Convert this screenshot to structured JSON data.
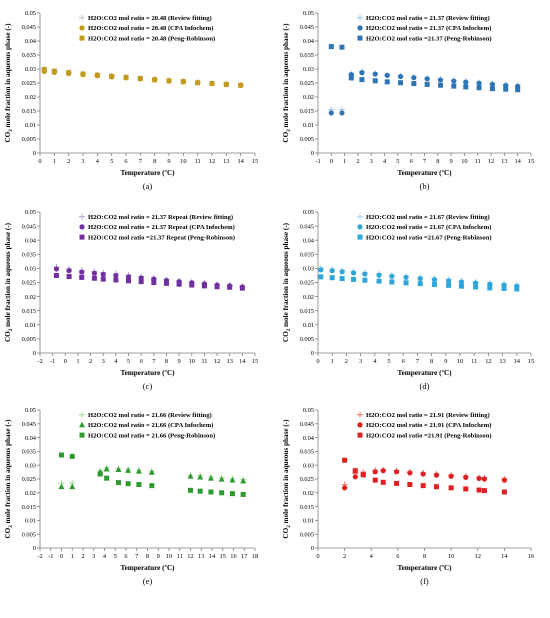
{
  "chart_data": [
    {
      "type": "scatter",
      "panel_label": "(a)",
      "xlabel": "Temperature (ºC)",
      "ylabel": "CO2 mole fraction in aqueous phase (-)",
      "xlim": [
        0,
        15
      ],
      "ylim": [
        0,
        0.05
      ],
      "xticks": [
        "0",
        "1",
        "2",
        "3",
        "4",
        "5",
        "6",
        "7",
        "8",
        "9",
        "10",
        "11",
        "12",
        "13",
        "14",
        "15"
      ],
      "yticks": [
        "0",
        "0.005",
        "0.01",
        "0.015",
        "0.02",
        "0.025",
        "0.03",
        "0.035",
        "0.04",
        "0.045",
        "0.05"
      ],
      "legend_position": "top-right",
      "grid": false,
      "series": [
        {
          "name": "H2O:CO2 mol ratio = 20.48 (Review fitting)",
          "marker": "plus",
          "color": "#c8c8c8",
          "x": [
            0.3,
            1,
            2,
            3,
            4,
            5,
            6,
            7,
            8,
            9,
            10,
            11,
            12,
            13,
            14
          ],
          "y": [
            0.03,
            0.0293,
            0.0288,
            0.0284,
            0.028,
            0.0276,
            0.0272,
            0.0268,
            0.0264,
            0.026,
            0.0257,
            0.0253,
            0.025,
            0.0247,
            0.0244
          ]
        },
        {
          "name": "H2O:CO2 mol ratio = 20.48 (CPA Infochem)",
          "marker": "circle",
          "color": "#c49a1c",
          "x": [
            0.3,
            1,
            2,
            3,
            4,
            5,
            6,
            7,
            8,
            9,
            10,
            11,
            12,
            13,
            14
          ],
          "y": [
            0.0291,
            0.0288,
            0.0284,
            0.028,
            0.0276,
            0.0272,
            0.0268,
            0.0265,
            0.0261,
            0.0257,
            0.0254,
            0.0251,
            0.0248,
            0.0245,
            0.0242
          ]
        },
        {
          "name": "H2O:CO2 mol ratio = 20.48 (Peng-Robinson)",
          "marker": "square",
          "color": "#c49a1c",
          "x": [
            0.3,
            1,
            2,
            3,
            4,
            5,
            6,
            7,
            8,
            9,
            10,
            11,
            12,
            13,
            14
          ],
          "y": [
            0.0298,
            0.0292,
            0.0287,
            0.0282,
            0.0278,
            0.0274,
            0.027,
            0.0266,
            0.0262,
            0.0258,
            0.0255,
            0.0251,
            0.0248,
            0.0245,
            0.0242
          ]
        }
      ]
    },
    {
      "type": "scatter",
      "panel_label": "(b)",
      "xlabel": "Temperature (ºC)",
      "ylabel": "CO2 mole fraction in aqueous phase (-)",
      "xlim": [
        -1,
        15
      ],
      "ylim": [
        0,
        0.05
      ],
      "xticks": [
        "-1",
        "0",
        "1",
        "2",
        "3",
        "4",
        "5",
        "6",
        "7",
        "8",
        "9",
        "10",
        "11",
        "12",
        "13",
        "14",
        "15"
      ],
      "yticks": [
        "0",
        "0.005",
        "0.01",
        "0.015",
        "0.02",
        "0.025",
        "0.03",
        "0.035",
        "0.04",
        "0.045",
        "0.05"
      ],
      "legend_position": "top-right",
      "grid": false,
      "series": [
        {
          "name": "H2O:CO2 mol ratio = 21.37 (Review fitting)",
          "marker": "plus",
          "color": "#a8c8e8",
          "x": [
            0,
            0.8,
            1.5,
            2.3,
            3.3,
            4.2,
            5.2,
            6.2,
            7.2,
            8.2,
            9.2,
            10.1,
            11.1,
            12.1,
            13.1,
            14
          ],
          "y": [
            0.0155,
            0.0155,
            0.0283,
            0.0291,
            0.0284,
            0.028,
            0.0276,
            0.0272,
            0.0268,
            0.0264,
            0.026,
            0.0256,
            0.0252,
            0.0248,
            0.0245,
            0.0242
          ]
        },
        {
          "name": "H2O:CO2 mol ratio = 21.37 (CPA Infochem)",
          "marker": "circle",
          "color": "#2e75b6",
          "x": [
            0,
            0.8,
            1.5,
            2.3,
            3.3,
            4.2,
            5.2,
            6.2,
            7.2,
            8.2,
            9.2,
            10.1,
            11.1,
            12.1,
            13.1,
            14
          ],
          "y": [
            0.0143,
            0.0143,
            0.028,
            0.0287,
            0.0282,
            0.0277,
            0.0273,
            0.0269,
            0.0265,
            0.0261,
            0.0257,
            0.0253,
            0.0249,
            0.0245,
            0.0241,
            0.0238
          ]
        },
        {
          "name": "H2O:CO2 mol ratio =21.37 (Peng-Robinson)",
          "marker": "square",
          "color": "#2e75b6",
          "x": [
            0,
            0.8,
            1.5,
            2.3,
            3.3,
            4.2,
            5.2,
            6.2,
            7.2,
            8.2,
            9.2,
            10.1,
            11.1,
            12.1,
            13.1,
            14
          ],
          "y": [
            0.038,
            0.0378,
            0.0268,
            0.0262,
            0.0258,
            0.0254,
            0.0251,
            0.0248,
            0.0245,
            0.0242,
            0.0239,
            0.0236,
            0.0233,
            0.023,
            0.0228,
            0.0226
          ]
        }
      ]
    },
    {
      "type": "scatter",
      "panel_label": "(c)",
      "xlabel": "Temperature (ºC)",
      "ylabel": "CO2 mole fraction in aqueous phase (-)",
      "xlim": [
        -2,
        15
      ],
      "ylim": [
        0,
        0.05
      ],
      "xticks": [
        "-2",
        "-1",
        "0",
        "1",
        "2",
        "3",
        "4",
        "5",
        "6",
        "7",
        "8",
        "9",
        "10",
        "11",
        "12",
        "13",
        "14",
        "15"
      ],
      "yticks": [
        "0",
        "0.005",
        "0.01",
        "0.015",
        "0.02",
        "0.025",
        "0.03",
        "0.035",
        "0.04",
        "0.045",
        "0.05"
      ],
      "legend_position": "top-right",
      "grid": false,
      "series": [
        {
          "name": "H2O:CO2 mol ratio = 21.37 Repeat (Review fitting)",
          "marker": "plus",
          "color": "#c0a8d8",
          "x": [
            -0.7,
            0.3,
            1.3,
            2.3,
            3,
            4,
            5,
            6,
            7,
            8,
            9,
            10,
            11,
            12,
            13,
            14
          ],
          "y": [
            0.0305,
            0.0298,
            0.0293,
            0.0289,
            0.0285,
            0.0281,
            0.0276,
            0.0271,
            0.0266,
            0.0261,
            0.0256,
            0.0252,
            0.0248,
            0.0244,
            0.024,
            0.0236
          ]
        },
        {
          "name": "H2O:CO2 mol ratio = 21.37 Repeat (CPA Infochem)",
          "marker": "circle",
          "color": "#7030a0",
          "x": [
            -0.7,
            0.3,
            1.3,
            2.3,
            3,
            4,
            5,
            6,
            7,
            8,
            9,
            10,
            11,
            12,
            13,
            14
          ],
          "y": [
            0.0298,
            0.0292,
            0.0287,
            0.0283,
            0.0279,
            0.0275,
            0.027,
            0.0266,
            0.0262,
            0.0257,
            0.0253,
            0.0249,
            0.0245,
            0.0241,
            0.0238,
            0.0234
          ]
        },
        {
          "name": "H2O:CO2 mol ratio =21.37 Repeat (Peng-Robinson)",
          "marker": "square",
          "color": "#7030a0",
          "x": [
            -0.7,
            0.3,
            1.3,
            2.3,
            3,
            4,
            5,
            6,
            7,
            8,
            9,
            10,
            11,
            12,
            13,
            14
          ],
          "y": [
            0.0275,
            0.0271,
            0.0268,
            0.0265,
            0.0262,
            0.0259,
            0.0256,
            0.0253,
            0.025,
            0.0247,
            0.0244,
            0.0241,
            0.0238,
            0.0235,
            0.0233,
            0.023
          ]
        }
      ]
    },
    {
      "type": "scatter",
      "panel_label": "(d)",
      "xlabel": "Temperature (ºC)",
      "ylabel": "CO2 mole fraction in aqueous phase (-)",
      "xlim": [
        0,
        15
      ],
      "ylim": [
        0,
        0.05
      ],
      "xticks": [
        "0",
        "1",
        "2",
        "3",
        "4",
        "5",
        "6",
        "7",
        "8",
        "9",
        "10",
        "11",
        "12",
        "13",
        "14",
        "15"
      ],
      "yticks": [
        "0",
        "0.005",
        "0.01",
        "0.015",
        "0.02",
        "0.025",
        "0.03",
        "0.035",
        "0.04",
        "0.045",
        "0.05"
      ],
      "legend_position": "top-right",
      "grid": false,
      "series": [
        {
          "name": "H2O:CO2 mol ratio = 21.67 (Review fitting)",
          "marker": "plus",
          "color": "#a8d8f0",
          "x": [
            0.2,
            1,
            1.7,
            2.5,
            3.3,
            4.3,
            5.2,
            6.2,
            7.2,
            8.2,
            9.2,
            10.1,
            11.1,
            12.1,
            13.1,
            14
          ],
          "y": [
            0.0302,
            0.0297,
            0.0293,
            0.0289,
            0.0285,
            0.0281,
            0.0277,
            0.0273,
            0.0269,
            0.0265,
            0.0261,
            0.0257,
            0.0253,
            0.0249,
            0.0245,
            0.0241
          ]
        },
        {
          "name": "H2O:CO2 mol ratio = 21.67 (CPA Infochem)",
          "marker": "circle",
          "color": "#2ea6db",
          "x": [
            0.2,
            1,
            1.7,
            2.5,
            3.3,
            4.3,
            5.2,
            6.2,
            7.2,
            8.2,
            9.2,
            10.1,
            11.1,
            12.1,
            13.1,
            14
          ],
          "y": [
            0.0295,
            0.0292,
            0.0288,
            0.0284,
            0.028,
            0.0276,
            0.0272,
            0.0268,
            0.0264,
            0.026,
            0.0256,
            0.0252,
            0.0248,
            0.0244,
            0.0241,
            0.0237
          ]
        },
        {
          "name": "H2O:CO2 mol ratio =21.67 (Peng-Robinson)",
          "marker": "square",
          "color": "#2ea6db",
          "x": [
            0.2,
            1,
            1.7,
            2.5,
            3.3,
            4.3,
            5.2,
            6.2,
            7.2,
            8.2,
            9.2,
            10.1,
            11.1,
            12.1,
            13.1,
            14
          ],
          "y": [
            0.027,
            0.0267,
            0.0264,
            0.0261,
            0.0258,
            0.0255,
            0.0252,
            0.0249,
            0.0246,
            0.0243,
            0.024,
            0.0237,
            0.0234,
            0.0231,
            0.0229,
            0.0227
          ]
        }
      ]
    },
    {
      "type": "scatter",
      "panel_label": "(e)",
      "xlabel": "Temperature (ºC)",
      "ylabel": "CO2 mole fraction in aqueous phase (-)",
      "xlim": [
        -2,
        18
      ],
      "ylim": [
        0,
        0.05
      ],
      "xticks": [
        "-2",
        "-1",
        "0",
        "1",
        "2",
        "3",
        "4",
        "5",
        "6",
        "7",
        "8",
        "9",
        "10",
        "11",
        "12",
        "13",
        "14",
        "15",
        "16",
        "17",
        "18"
      ],
      "yticks": [
        "0",
        "0.005",
        "0.01",
        "0.015",
        "0.02",
        "0.025",
        "0.03",
        "0.035",
        "0.04",
        "0.045",
        "0.05"
      ],
      "legend_position": "top-right",
      "grid": false,
      "series": [
        {
          "name": "H2O:CO2 mol ratio = 21.66 (Review fitting)",
          "marker": "plus",
          "color": "#a8d8a8",
          "x": [
            0,
            1,
            3.6,
            4.2,
            5.3,
            6.2,
            7.2,
            8.4,
            12,
            12.9,
            13.9,
            14.9,
            15.9,
            16.9
          ],
          "y": [
            0.0235,
            0.0235,
            0.028,
            0.029,
            0.0288,
            0.0285,
            0.0282,
            0.0278,
            0.0264,
            0.0262,
            0.0258,
            0.0254,
            0.0251,
            0.0248
          ]
        },
        {
          "name": "H2O:CO2 mol ratio = 21.66 (CPA Infochem)",
          "marker": "triangle",
          "color": "#2e9a2e",
          "x": [
            0,
            1,
            3.6,
            4.2,
            5.3,
            6.2,
            7.2,
            8.4,
            12,
            12.9,
            13.9,
            14.9,
            15.9,
            16.9
          ],
          "y": [
            0.0222,
            0.0222,
            0.0275,
            0.0286,
            0.0284,
            0.0281,
            0.0278,
            0.0274,
            0.026,
            0.0257,
            0.0253,
            0.0249,
            0.0246,
            0.0243
          ]
        },
        {
          "name": "H2O:CO2 mol ratio = 21.66 (Peng-Robinson)",
          "marker": "square",
          "color": "#2e9a2e",
          "x": [
            0,
            1,
            3.6,
            4.2,
            5.3,
            6.2,
            7.2,
            8.4,
            12,
            12.9,
            13.9,
            14.9,
            15.9,
            16.9
          ],
          "y": [
            0.0337,
            0.0332,
            0.0268,
            0.0253,
            0.0237,
            0.0233,
            0.023,
            0.0226,
            0.0209,
            0.0206,
            0.0203,
            0.02,
            0.0197,
            0.0194
          ]
        }
      ]
    },
    {
      "type": "scatter",
      "panel_label": "(f)",
      "xlabel": "Temperature (ºC)",
      "ylabel": "CO2 mole fraction in aqueous phase (-)",
      "xlim": [
        0,
        16
      ],
      "ylim": [
        0,
        0.05
      ],
      "xticks": [
        "0",
        "2",
        "4",
        "6",
        "8",
        "10",
        "12",
        "14",
        "16"
      ],
      "yticks": [
        "0",
        "0.005",
        "0.01",
        "0.015",
        "0.02",
        "0.025",
        "0.03",
        "0.035",
        "0.04",
        "0.045",
        "0.05"
      ],
      "legend_position": "top-right",
      "grid": false,
      "series": [
        {
          "name": "H2O:CO2 mol ratio = 21.91 (Review fitting)",
          "marker": "plus",
          "color": "#f08080",
          "x": [
            2,
            2.8,
            3.4,
            4.3,
            4.9,
            5.9,
            6.9,
            7.9,
            8.9,
            10,
            11.1,
            12.1,
            12.5,
            14
          ],
          "y": [
            0.023,
            0.027,
            0.0275,
            0.0282,
            0.0283,
            0.028,
            0.0276,
            0.0272,
            0.0268,
            0.0264,
            0.026,
            0.0256,
            0.0254,
            0.025
          ]
        },
        {
          "name": "H2O:CO2 mol ratio = 21.91 (CPA Infochem)",
          "marker": "circle",
          "color": "#e02020",
          "x": [
            2,
            2.8,
            3.4,
            4.3,
            4.9,
            5.9,
            6.9,
            7.9,
            8.9,
            10,
            11.1,
            12.1,
            12.5,
            14
          ],
          "y": [
            0.0218,
            0.0258,
            0.0266,
            0.0276,
            0.028,
            0.0276,
            0.0272,
            0.0268,
            0.0264,
            0.026,
            0.0256,
            0.0252,
            0.025,
            0.0246
          ]
        },
        {
          "name": "H2O:CO2 mol ratio =21.91 (Peng-Robinson)",
          "marker": "square",
          "color": "#e02020",
          "x": [
            2,
            2.8,
            3.4,
            4.3,
            4.9,
            5.9,
            6.9,
            7.9,
            8.9,
            10,
            11.1,
            12.1,
            12.5,
            14
          ],
          "y": [
            0.0318,
            0.028,
            0.0265,
            0.0246,
            0.0238,
            0.0234,
            0.023,
            0.0226,
            0.0222,
            0.0218,
            0.0214,
            0.021,
            0.0208,
            0.0203
          ]
        }
      ]
    }
  ]
}
